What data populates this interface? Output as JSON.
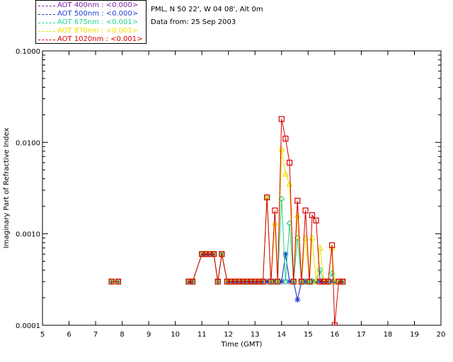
{
  "header": {
    "station": "PML, N 50 22', W 04 08', Alt 0m",
    "date_line": "Data from: 25 Sep 2003"
  },
  "legend": [
    {
      "label": "AOT  400nm : <0.000>",
      "color": "#7a1fa2"
    },
    {
      "label": "AOT  500nm : <0.000>",
      "color": "#1f3fd6"
    },
    {
      "label": "AOT  675nm : <0.001>",
      "color": "#1fd68a"
    },
    {
      "label": "AOT  870nm : <0.001>",
      "color": "#f0e000"
    },
    {
      "label": "AOT 1020nm : <0.001>",
      "color": "#d60000"
    }
  ],
  "chart_data": {
    "type": "line",
    "xlabel": "Time (GMT)",
    "ylabel": "Imaginary Part of Refractive Index",
    "xlim": [
      5,
      20
    ],
    "ylim": [
      0.0001,
      0.1
    ],
    "yscale": "log",
    "xticks": [
      "5",
      "6",
      "7",
      "8",
      "9",
      "10",
      "11",
      "12",
      "13",
      "14",
      "15",
      "16",
      "17",
      "18",
      "19",
      "20"
    ],
    "yticks": [
      {
        "value": 0.0001,
        "label": "0.0001"
      },
      {
        "value": 0.001,
        "label": "0.0010"
      },
      {
        "value": 0.01,
        "label": "0.0100"
      },
      {
        "value": 0.1,
        "label": "0.1000"
      }
    ],
    "x": [
      7.6,
      7.85,
      10.5,
      10.65,
      11.0,
      11.15,
      11.3,
      11.45,
      11.6,
      11.75,
      11.95,
      12.1,
      12.25,
      12.4,
      12.55,
      12.7,
      12.85,
      13.0,
      13.15,
      13.3,
      13.45,
      13.6,
      13.75,
      13.85,
      14.0,
      14.15,
      14.3,
      14.45,
      14.6,
      14.75,
      14.9,
      15.05,
      15.15,
      15.3,
      15.45,
      15.6,
      15.75,
      15.9,
      16.0,
      16.15,
      16.3
    ],
    "series": [
      {
        "name": "AOT  400nm : <0.000>",
        "color": "#7a1fa2",
        "marker": "star",
        "values": [
          0.0003,
          0.0003,
          0.0003,
          0.0003,
          0.0006,
          0.0006,
          0.0006,
          0.0006,
          0.0003,
          0.0006,
          0.0003,
          0.0003,
          0.0003,
          0.0003,
          0.0003,
          0.0003,
          0.0003,
          0.0003,
          0.0003,
          0.0003,
          0.0003,
          0.0003,
          0.0003,
          0.0003,
          0.0003,
          0.0006,
          0.0003,
          0.0003,
          0.00019,
          0.0003,
          0.0003,
          0.0003,
          0.0003,
          0.0003,
          0.0003,
          0.0003,
          0.0003,
          0.0003,
          0.0003,
          0.0003,
          0.0003
        ]
      },
      {
        "name": "AOT  500nm : <0.000>",
        "color": "#1f3fd6",
        "marker": "star",
        "values": [
          0.0003,
          0.0003,
          0.0003,
          0.0003,
          0.0006,
          0.0006,
          0.0006,
          0.0006,
          0.0003,
          0.0006,
          0.0003,
          0.0003,
          0.0003,
          0.0003,
          0.0003,
          0.0003,
          0.0003,
          0.0003,
          0.0003,
          0.0003,
          0.0003,
          0.0003,
          0.0003,
          0.0003,
          0.0003,
          0.0006,
          0.0003,
          0.0003,
          0.00019,
          0.0003,
          0.0003,
          0.0003,
          0.0003,
          0.0003,
          0.0003,
          0.0003,
          0.0003,
          0.0003,
          0.0003,
          0.0003,
          0.0003
        ]
      },
      {
        "name": "AOT  675nm : <0.001>",
        "color": "#1fd68a",
        "marker": "diamond",
        "values": [
          0.0003,
          0.0003,
          0.0003,
          0.0003,
          0.0006,
          0.0006,
          0.0006,
          0.0006,
          0.0003,
          0.0006,
          0.0003,
          0.0003,
          0.0003,
          0.0003,
          0.0003,
          0.0003,
          0.0003,
          0.0003,
          0.0003,
          0.0003,
          0.0025,
          0.0003,
          0.0003,
          0.0003,
          0.0024,
          0.0003,
          0.0013,
          0.0003,
          0.0009,
          0.0003,
          0.0003,
          0.0003,
          0.0003,
          0.0003,
          0.0004,
          0.0003,
          0.0003,
          0.00037,
          0.0003,
          0.0003,
          0.0003
        ]
      },
      {
        "name": "AOT  870nm : <0.001>",
        "color": "#f0e000",
        "marker": "triangle",
        "values": [
          0.0003,
          0.0003,
          0.0003,
          0.0003,
          0.0006,
          0.0006,
          0.0006,
          0.0006,
          0.0003,
          0.0006,
          0.0003,
          0.0003,
          0.0003,
          0.0003,
          0.0003,
          0.0003,
          0.0003,
          0.0003,
          0.0003,
          0.0003,
          0.0025,
          0.0003,
          0.0013,
          0.0003,
          0.0085,
          0.0045,
          0.0035,
          0.0003,
          0.0016,
          0.0003,
          0.0009,
          0.0003,
          0.0009,
          0.0003,
          0.0007,
          0.0003,
          0.0003,
          0.0007,
          0.0003,
          0.0003,
          0.0003
        ]
      },
      {
        "name": "AOT 1020nm : <0.001>",
        "color": "#d60000",
        "marker": "square",
        "values": [
          0.0003,
          0.0003,
          0.0003,
          0.0003,
          0.0006,
          0.0006,
          0.0006,
          0.0006,
          0.0003,
          0.0006,
          0.0003,
          0.0003,
          0.0003,
          0.0003,
          0.0003,
          0.0003,
          0.0003,
          0.0003,
          0.0003,
          0.0003,
          0.0025,
          0.0003,
          0.0018,
          0.0003,
          0.018,
          0.011,
          0.006,
          0.0003,
          0.0023,
          0.0003,
          0.0018,
          0.0003,
          0.0016,
          0.0014,
          0.0003,
          0.0003,
          0.0003,
          0.00075,
          0.0001,
          0.0003,
          0.0003
        ]
      }
    ]
  }
}
